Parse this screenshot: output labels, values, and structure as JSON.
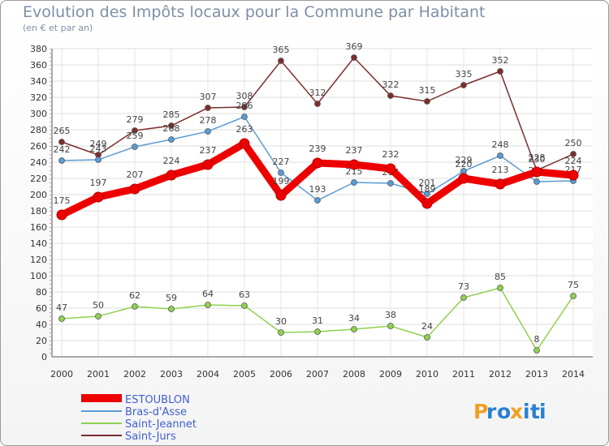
{
  "chart_data": {
    "type": "line",
    "title": "Evolution des Impôts locaux pour la Commune par Habitant",
    "subtitle": "(en € et par an)",
    "xlabel": "",
    "ylabel": "",
    "ylim": [
      0,
      380
    ],
    "x": [
      "2000",
      "2001",
      "2002",
      "2003",
      "2004",
      "2005",
      "2006",
      "2007",
      "2008",
      "2009",
      "2010",
      "2011",
      "2012",
      "2013",
      "2014"
    ],
    "series": [
      {
        "name": "ESTOUBLON",
        "color": "#ee0000",
        "values": [
          175,
          197,
          207,
          224,
          237,
          263,
          199,
          239,
          237,
          232,
          189,
          220,
          213,
          228,
          224
        ],
        "labels": [
          "175",
          "197",
          "207",
          "224",
          "237",
          "263",
          "199",
          "239",
          "237",
          "232",
          "189",
          "220",
          "213",
          "228",
          "224"
        ]
      },
      {
        "name": "Bras-d'Asse",
        "color": "#5a9bd5",
        "values": [
          242,
          243,
          259,
          268,
          278,
          296,
          227,
          193,
          215,
          214,
          201,
          229,
          248,
          216,
          217
        ],
        "labels": [
          "242",
          "243",
          "259",
          "268",
          "278",
          "296",
          "227",
          "193",
          "215",
          "214",
          "201",
          "229",
          "248",
          "216",
          "217"
        ]
      },
      {
        "name": "Saint-Jeannet",
        "color": "#8fd14f",
        "values": [
          47,
          50,
          62,
          59,
          64,
          63,
          30,
          31,
          34,
          38,
          24,
          73,
          85,
          8,
          75
        ],
        "labels": [
          "47",
          "50",
          "62",
          "59",
          "64",
          "63",
          "30",
          "31",
          "34",
          "38",
          "24",
          "73",
          "85",
          "8",
          "75"
        ]
      },
      {
        "name": "Saint-Jurs",
        "color": "#7b2d2d",
        "values": [
          265,
          249,
          279,
          285,
          307,
          308,
          365,
          312,
          369,
          322,
          315,
          335,
          352,
          230,
          250
        ],
        "labels": [
          "265",
          "249",
          "279",
          "285",
          "307",
          "308",
          "365",
          "312",
          "369",
          "322",
          "315",
          "335",
          "352",
          "230",
          "250"
        ]
      }
    ]
  },
  "brand": {
    "text": "Proxiti",
    "letters": [
      "P",
      "r",
      "o",
      "x",
      "i",
      "t",
      "i"
    ],
    "colors": [
      "#f0a020",
      "#2a7fd4",
      "#2a7fd4",
      "#f0a020",
      "#2a7fd4",
      "#2a7fd4",
      "#2a7fd4"
    ]
  }
}
